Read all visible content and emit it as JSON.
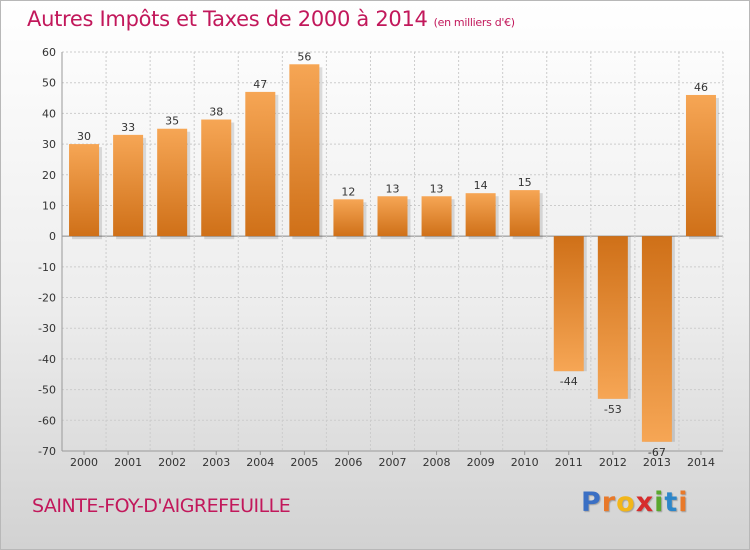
{
  "header": {
    "title": "Autres Impôts et Taxes de 2000 à 2014",
    "subtitle": "(en milliers d'€)"
  },
  "footer": {
    "commune": "SAINTE-FOY-D'AIGREFEUILLE",
    "logo_letters": [
      {
        "ch": "P",
        "color": "#3a6fc4"
      },
      {
        "ch": "r",
        "color": "#e8792a"
      },
      {
        "ch": "o",
        "color": "#f2b619"
      },
      {
        "ch": "x",
        "color": "#d62c2c"
      },
      {
        "ch": "i",
        "color": "#5aa82e"
      },
      {
        "ch": "t",
        "color": "#2d86c9"
      },
      {
        "ch": "i",
        "color": "#e8792a"
      }
    ]
  },
  "colors": {
    "bar_light": "#f6a655",
    "bar_dark": "#cf7018",
    "grid": "#cccccc",
    "zero_line": "#888888",
    "title": "#c2185b"
  },
  "chart_data": {
    "type": "bar",
    "title": "Autres Impôts et Taxes de 2000 à 2014",
    "subtitle": "(en milliers d'€)",
    "xlabel": "",
    "ylabel": "",
    "categories": [
      "2000",
      "2001",
      "2002",
      "2003",
      "2004",
      "2005",
      "2006",
      "2007",
      "2008",
      "2009",
      "2010",
      "2011",
      "2012",
      "2013",
      "2014"
    ],
    "values": [
      30,
      33,
      35,
      38,
      47,
      56,
      12,
      13,
      13,
      14,
      15,
      -44,
      -53,
      -67,
      46
    ],
    "ylim": [
      -70,
      60
    ],
    "yticks": [
      60,
      50,
      40,
      30,
      20,
      10,
      0,
      -10,
      -20,
      -30,
      -40,
      -50,
      -60,
      -70
    ],
    "grid": true,
    "legend": "none"
  }
}
